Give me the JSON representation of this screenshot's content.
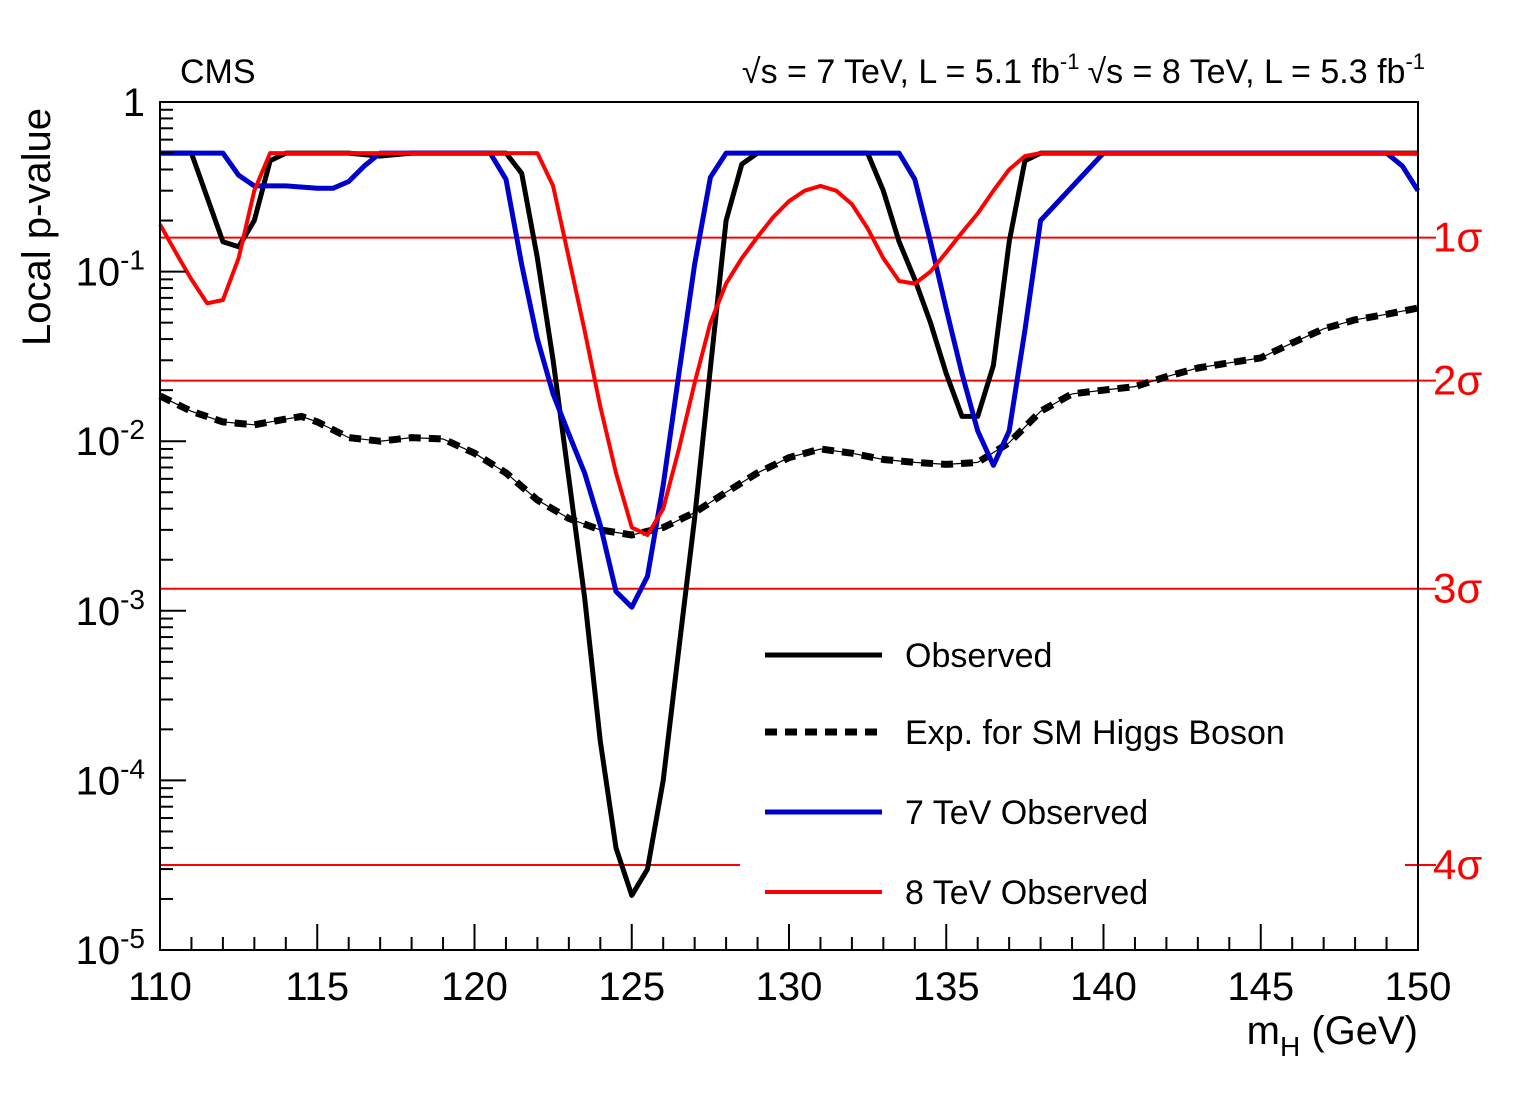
{
  "chart_data": {
    "type": "line",
    "experiment_label": "CMS",
    "energy_label_7": "√s = 7 TeV, L = 5.1 fb",
    "energy_label_7_exp": "-1",
    "energy_label_8": "√s = 8 TeV, L = 5.3 fb",
    "energy_label_8_exp": "-1",
    "xlabel_main": "m",
    "xlabel_sub": "H",
    "xlabel_rest": " (GeV)",
    "ylabel": "Local p-value",
    "xlim": [
      110,
      150
    ],
    "ylim": [
      1e-05,
      1
    ],
    "yscale": "log",
    "x_ticks": [
      "110",
      "115",
      "120",
      "125",
      "130",
      "135",
      "140",
      "145",
      "150"
    ],
    "y_ticks": [
      {
        "base": "1",
        "exp": ""
      },
      {
        "base": "10",
        "exp": "-1"
      },
      {
        "base": "10",
        "exp": "-2"
      },
      {
        "base": "10",
        "exp": "-3"
      },
      {
        "base": "10",
        "exp": "-4"
      },
      {
        "base": "10",
        "exp": "-5"
      }
    ],
    "sigma_lines": [
      {
        "label": "1σ",
        "p": 0.1587
      },
      {
        "label": "2σ",
        "p": 0.02275
      },
      {
        "label": "3σ",
        "p": 0.00135
      },
      {
        "label": "4σ",
        "p": 3.17e-05
      }
    ],
    "series": [
      {
        "name": "Observed",
        "color": "#000000",
        "style": "solid",
        "x": [
          110,
          111,
          112,
          112.5,
          113,
          113.5,
          114,
          115,
          116,
          117,
          118,
          119,
          120,
          121,
          121.5,
          122,
          122.5,
          123,
          123.5,
          124,
          124.5,
          125,
          125.5,
          126,
          126.5,
          127,
          127.5,
          128,
          128.5,
          129,
          130,
          131,
          132,
          132.5,
          133,
          133.5,
          134,
          134.5,
          135,
          135.5,
          136,
          136.5,
          137,
          137.5,
          138,
          140,
          145,
          150
        ],
        "y": [
          0.5,
          0.5,
          0.15,
          0.14,
          0.2,
          0.45,
          0.5,
          0.5,
          0.5,
          0.48,
          0.5,
          0.5,
          0.5,
          0.5,
          0.38,
          0.12,
          0.03,
          0.006,
          0.0012,
          0.00017,
          4e-05,
          2.1e-05,
          3e-05,
          0.0001,
          0.0006,
          0.0035,
          0.027,
          0.2,
          0.43,
          0.5,
          0.5,
          0.5,
          0.5,
          0.5,
          0.3,
          0.15,
          0.09,
          0.05,
          0.025,
          0.014,
          0.014,
          0.028,
          0.15,
          0.45,
          0.5,
          0.5,
          0.5,
          0.5
        ]
      },
      {
        "name": "Exp. for SM Higgs Boson",
        "color": "#000000",
        "style": "dashed",
        "x": [
          110,
          111,
          112,
          113,
          114,
          114.5,
          115,
          116,
          117,
          118,
          119,
          120,
          121,
          122,
          123,
          124,
          125,
          126,
          127,
          128,
          129,
          130,
          131,
          132,
          133,
          134,
          135,
          136,
          137,
          138,
          139,
          140,
          141,
          142,
          143,
          144,
          145,
          146,
          147,
          148,
          149,
          150
        ],
        "y": [
          0.0185,
          0.015,
          0.013,
          0.0125,
          0.0135,
          0.014,
          0.013,
          0.0105,
          0.01,
          0.0105,
          0.0103,
          0.0085,
          0.0065,
          0.0045,
          0.0035,
          0.003,
          0.0028,
          0.0031,
          0.0038,
          0.005,
          0.0065,
          0.008,
          0.009,
          0.0085,
          0.0078,
          0.0075,
          0.0073,
          0.0075,
          0.0098,
          0.015,
          0.019,
          0.02,
          0.021,
          0.024,
          0.027,
          0.029,
          0.031,
          0.038,
          0.046,
          0.052,
          0.056,
          0.061
        ]
      },
      {
        "name": "7 TeV Observed",
        "color": "#0000cc",
        "style": "solid",
        "x": [
          110,
          111,
          112,
          112.5,
          113,
          113.5,
          114,
          115,
          115.5,
          116,
          116.5,
          117,
          118,
          119,
          120,
          120.5,
          121,
          121.5,
          122,
          122.5,
          123,
          123.5,
          124,
          124.5,
          125,
          125.5,
          126,
          126.5,
          127,
          127.5,
          128,
          128.5,
          129,
          130,
          131,
          132,
          133,
          133.5,
          134,
          134.5,
          135,
          135.5,
          136,
          136.5,
          137,
          137.5,
          138,
          140,
          145,
          149,
          149.5,
          150
        ],
        "y": [
          0.5,
          0.5,
          0.5,
          0.37,
          0.32,
          0.32,
          0.32,
          0.31,
          0.31,
          0.34,
          0.42,
          0.5,
          0.5,
          0.5,
          0.5,
          0.5,
          0.35,
          0.11,
          0.04,
          0.019,
          0.011,
          0.0065,
          0.0032,
          0.0013,
          0.00105,
          0.0016,
          0.0055,
          0.025,
          0.11,
          0.36,
          0.5,
          0.5,
          0.5,
          0.5,
          0.5,
          0.5,
          0.5,
          0.5,
          0.35,
          0.15,
          0.06,
          0.025,
          0.0115,
          0.0072,
          0.0115,
          0.045,
          0.2,
          0.5,
          0.5,
          0.5,
          0.42,
          0.3
        ]
      },
      {
        "name": "8 TeV Observed",
        "color": "#ff0000",
        "style": "solid",
        "x": [
          110,
          110.5,
          111,
          111.5,
          112,
          112.5,
          113,
          113.5,
          114,
          115,
          116,
          117,
          118,
          119,
          120,
          121,
          122,
          122.5,
          123,
          123.5,
          124,
          124.5,
          125,
          125.5,
          126,
          126.5,
          127,
          127.5,
          128,
          128.5,
          129,
          129.5,
          130,
          130.5,
          131,
          131.5,
          132,
          132.5,
          133,
          133.5,
          134,
          134.5,
          135,
          135.5,
          136,
          136.5,
          137,
          137.5,
          138,
          140,
          145,
          150
        ],
        "y": [
          0.19,
          0.13,
          0.09,
          0.065,
          0.068,
          0.12,
          0.3,
          0.5,
          0.5,
          0.5,
          0.5,
          0.5,
          0.5,
          0.5,
          0.5,
          0.5,
          0.5,
          0.32,
          0.12,
          0.045,
          0.016,
          0.0065,
          0.0031,
          0.0028,
          0.004,
          0.009,
          0.022,
          0.05,
          0.085,
          0.12,
          0.16,
          0.21,
          0.26,
          0.3,
          0.32,
          0.3,
          0.25,
          0.18,
          0.12,
          0.088,
          0.085,
          0.1,
          0.13,
          0.17,
          0.22,
          0.3,
          0.4,
          0.48,
          0.5,
          0.5,
          0.5,
          0.5
        ]
      }
    ],
    "legend": [
      {
        "label": "Observed"
      },
      {
        "label": "Exp. for SM Higgs Boson"
      },
      {
        "label": "7 TeV Observed"
      },
      {
        "label": "8 TeV Observed"
      }
    ],
    "legend_placement": "bottom-right",
    "grid": false
  }
}
